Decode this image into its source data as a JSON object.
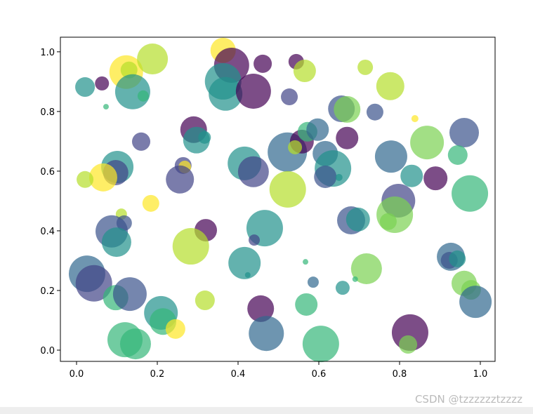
{
  "chart_data": {
    "type": "scatter",
    "alpha": 0.7,
    "xlim": [
      -0.04,
      1.0365
    ],
    "ylim": [
      -0.0376,
      1.049
    ],
    "xticks": [
      {
        "value": 0,
        "label": "0.0"
      },
      {
        "value": 0.2,
        "label": "0.2"
      },
      {
        "value": 0.4,
        "label": "0.4"
      },
      {
        "value": 0.6,
        "label": "0.6"
      },
      {
        "value": 0.8,
        "label": "0.8"
      },
      {
        "value": 1,
        "label": "1.0"
      }
    ],
    "yticks": [
      {
        "value": 0,
        "label": "0.0"
      },
      {
        "value": 0.2,
        "label": "0.2"
      },
      {
        "value": 0.4,
        "label": "0.4"
      },
      {
        "value": 0.6,
        "label": "0.6"
      },
      {
        "value": 0.8,
        "label": "0.8"
      },
      {
        "value": 1,
        "label": "1.0"
      }
    ],
    "series": [
      {
        "x": [
          0.021,
          0.063,
          0.123,
          0.188,
          0.13,
          0.139,
          0.165,
          0.073,
          0.363,
          0.384,
          0.363,
          0.369,
          0.438,
          0.461,
          0.544,
          0.565,
          0.715,
          0.777,
          0.527,
          0.656,
          0.67,
          0.739,
          0.96,
          0.838,
          0.868,
          0.944,
          0.889,
          0.974,
          0.779,
          0.83,
          0.797,
          0.788,
          0.772,
          0.68,
          0.697,
          0.718,
          0.659,
          0.69,
          0.567,
          0.586,
          0.569,
          0.605,
          0.826,
          0.821,
          0.927,
          0.923,
          0.943,
          0.96,
          0.977,
          0.988,
          0.522,
          0.558,
          0.572,
          0.597,
          0.616,
          0.635,
          0.616,
          0.541,
          0.67,
          0.65,
          0.523,
          0.416,
          0.438,
          0.466,
          0.44,
          0.416,
          0.424,
          0.456,
          0.47,
          0.29,
          0.297,
          0.317,
          0.264,
          0.268,
          0.256,
          0.16,
          0.101,
          0.097,
          0.066,
          0.021,
          0.184,
          0.111,
          0.118,
          0.087,
          0.099,
          0.32,
          0.283,
          0.026,
          0.043,
          0.097,
          0.132,
          0.209,
          0.214,
          0.12,
          0.146,
          0.245,
          0.318
        ],
        "y": [
          0.882,
          0.894,
          0.932,
          0.976,
          0.939,
          0.866,
          0.852,
          0.816,
          1.005,
          0.955,
          0.901,
          0.859,
          0.868,
          0.96,
          0.967,
          0.936,
          0.948,
          0.885,
          0.849,
          0.809,
          0.807,
          0.798,
          0.729,
          0.776,
          0.696,
          0.654,
          0.576,
          0.525,
          0.649,
          0.584,
          0.501,
          0.454,
          0.431,
          0.435,
          0.438,
          0.273,
          0.209,
          0.238,
          0.296,
          0.228,
          0.153,
          0.021,
          0.059,
          0.019,
          0.313,
          0.301,
          0.306,
          0.224,
          0.202,
          0.162,
          0.664,
          0.699,
          0.732,
          0.739,
          0.659,
          0.609,
          0.581,
          0.68,
          0.711,
          0.579,
          0.539,
          0.626,
          0.598,
          0.409,
          0.369,
          0.292,
          0.252,
          0.139,
          0.056,
          0.739,
          0.704,
          0.713,
          0.619,
          0.614,
          0.572,
          0.699,
          0.614,
          0.595,
          0.579,
          0.572,
          0.492,
          0.456,
          0.426,
          0.398,
          0.362,
          0.402,
          0.348,
          0.256,
          0.224,
          0.176,
          0.188,
          0.125,
          0.096,
          0.035,
          0.021,
          0.071,
          0.167
        ],
        "sizes": [
          406,
          207,
          1192,
          1002,
          298,
          1294,
          132,
          33,
          671,
          1294,
          1399,
          1192,
          1294,
          350,
          250,
          530,
          250,
          828,
          298,
          747,
          747,
          298,
          913,
          52,
          1192,
          406,
          598,
          1399,
          1095,
          530,
          1192,
          1399,
          298,
          828,
          598,
          1002,
          207,
          33,
          33,
          132,
          530,
          1399,
          1399,
          350,
          828,
          298,
          298,
          671,
          406,
          1095,
          1623,
          598,
          406,
          530,
          671,
          1399,
          530,
          207,
          530,
          52,
          1399,
          1192,
          1002,
          1399,
          132,
          1095,
          33,
          747,
          1294,
          747,
          747,
          168,
          298,
          168,
          828,
          350,
          1095,
          671,
          828,
          298,
          298,
          132,
          250,
          1095,
          913,
          530,
          1399,
          1399,
          1399,
          671,
          1192,
          1192,
          747,
          1294,
          1002,
          406,
          406
        ],
        "colors": [
          "#21918c",
          "#440154",
          "#fde725",
          "#b5de2b",
          "#b5de2b",
          "#21918c",
          "#35b779",
          "#35b779",
          "#fde725",
          "#440154",
          "#21918c",
          "#21918c",
          "#440154",
          "#440154",
          "#440154",
          "#b5de2b",
          "#b5de2b",
          "#b5de2b",
          "#414487",
          "#3b528b",
          "#7ad151",
          "#3b528b",
          "#3b528b",
          "#fde725",
          "#7ad151",
          "#35b779",
          "#440154",
          "#35b779",
          "#31688e",
          "#21918c",
          "#414487",
          "#7ad151",
          "#7ad151",
          "#3b528b",
          "#21918c",
          "#7ad151",
          "#21918c",
          "#35b779",
          "#35b779",
          "#31688e",
          "#35b779",
          "#35b779",
          "#440154",
          "#7ad151",
          "#31688e",
          "#3b528b",
          "#21918c",
          "#7ad151",
          "#7ad151",
          "#31688e",
          "#31688e",
          "#440154",
          "#35b779",
          "#31688e",
          "#31688e",
          "#21918c",
          "#3b528b",
          "#b5de2b",
          "#440154",
          "#21918c",
          "#b5de2b",
          "#21918c",
          "#414487",
          "#21918c",
          "#414487",
          "#21918c",
          "#21918c",
          "#440154",
          "#31688e",
          "#440154",
          "#21918c",
          "#21918c",
          "#414487",
          "#fde725",
          "#414487",
          "#414487",
          "#21918c",
          "#414487",
          "#fde725",
          "#b5de2b",
          "#fde725",
          "#b5de2b",
          "#3b528b",
          "#3b528b",
          "#21918c",
          "#440154",
          "#b5de2b",
          "#31688e",
          "#414487",
          "#35b779",
          "#3b528b",
          "#21918c",
          "#35b779",
          "#35b779",
          "#35b779",
          "#fde725",
          "#b5de2b"
        ]
      }
    ]
  },
  "watermark": "CSDN @tzzzzzztzzzz"
}
